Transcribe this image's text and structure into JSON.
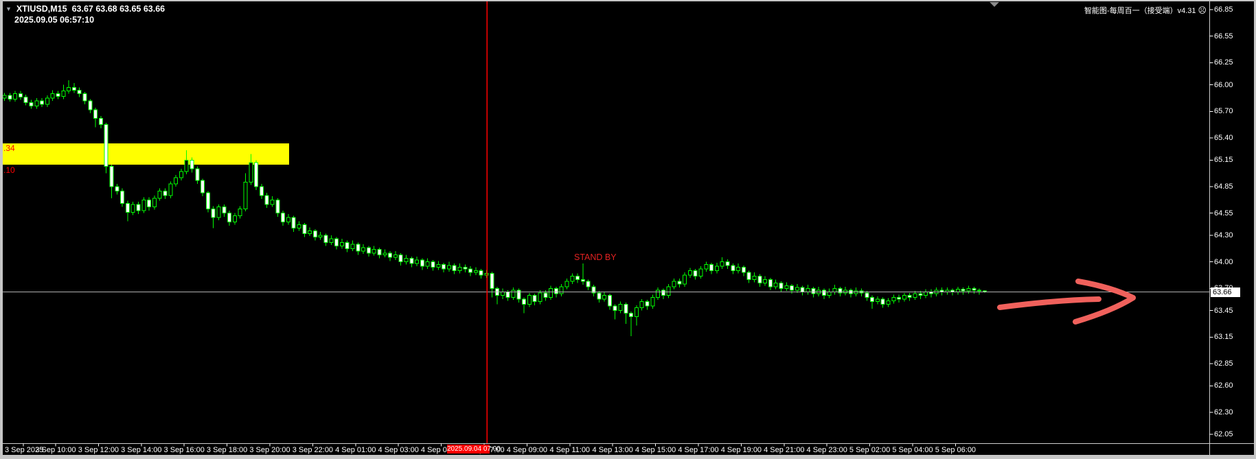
{
  "header": {
    "dropdown_icon": "▼",
    "symbol": "XTIUSD,M15",
    "ohlc": "63.67 63.68 63.65 63.66",
    "timestamp": "2025.09.05 06:57:10",
    "indicator_label": "智能图-每周百一（接受端）v4.31",
    "indicator_icon": "☹"
  },
  "price_axis": {
    "labels": [
      "66.85",
      "66.55",
      "66.25",
      "66.00",
      "65.70",
      "65.40",
      "65.15",
      "64.85",
      "64.55",
      "64.30",
      "64.00",
      "63.70",
      "63.45",
      "63.15",
      "62.85",
      "62.60",
      "62.30",
      "62.05"
    ],
    "current_tag": "63.66"
  },
  "time_axis": {
    "labels": [
      "3 Sep 2025",
      "3 Sep 10:00",
      "3 Sep 12:00",
      "3 Sep 14:00",
      "3 Sep 16:00",
      "3 Sep 18:00",
      "3 Sep 20:00",
      "3 Sep 22:00",
      "4 Sep 01:00",
      "4 Sep 03:00",
      "4 Sep 05:00",
      "4 Sep 07:00",
      "4 Sep 09:00",
      "4 Sep 11:00",
      "4 Sep 13:00",
      "4 Sep 15:00",
      "4 Sep 17:00",
      "4 Sep 19:00",
      "4 Sep 21:00",
      "4 Sep 23:00",
      "5 Sep 02:00",
      "5 Sep 04:00",
      "5 Sep 06:00"
    ]
  },
  "overlays": {
    "zone": {
      "label_top": ".34",
      "label_bottom": ".10",
      "price_top": 65.34,
      "price_bottom": 65.1,
      "color": "#ffff00",
      "label_color": "#ff0000"
    },
    "vline": {
      "tag_text": "2025.09.04 07:00",
      "color": "#ff0000"
    },
    "standby": {
      "text": "STAND BY",
      "color": "#e32222"
    },
    "arrow": {
      "color": "#f0615c"
    },
    "bid_line": {
      "price": 63.66,
      "color": "#b0b0b0"
    }
  },
  "colors": {
    "background": "#000000",
    "candle_outline": "#00ff00",
    "bear_body_fill": "#ffffff",
    "bull_body_fill": "#000000",
    "axis_text": "#ffffff",
    "axis_line": "#cfcfcf"
  },
  "chart_data": {
    "type": "candlestick",
    "symbol": "XTIUSD",
    "timeframe": "M15",
    "ylim": [
      62.05,
      66.85
    ],
    "grid": false,
    "candles_format": [
      "open",
      "high",
      "low",
      "close"
    ],
    "candles": [
      [
        65.85,
        65.91,
        65.82,
        65.88
      ],
      [
        65.88,
        65.91,
        65.81,
        65.84
      ],
      [
        65.84,
        65.93,
        65.81,
        65.9
      ],
      [
        65.9,
        65.93,
        65.83,
        65.86
      ],
      [
        65.86,
        65.89,
        65.77,
        65.8
      ],
      [
        65.8,
        65.83,
        65.73,
        65.76
      ],
      [
        65.76,
        65.85,
        65.73,
        65.82
      ],
      [
        65.82,
        65.85,
        65.75,
        65.78
      ],
      [
        65.78,
        65.88,
        65.75,
        65.85
      ],
      [
        65.85,
        65.94,
        65.82,
        65.9
      ],
      [
        65.9,
        65.93,
        65.84,
        65.87
      ],
      [
        65.87,
        66.0,
        65.84,
        65.93
      ],
      [
        65.93,
        66.05,
        65.9,
        65.97
      ],
      [
        65.97,
        66.02,
        65.91,
        65.94
      ],
      [
        65.94,
        65.97,
        65.86,
        65.9
      ],
      [
        65.9,
        65.92,
        65.78,
        65.82
      ],
      [
        65.82,
        65.84,
        65.68,
        65.72
      ],
      [
        65.72,
        65.74,
        65.52,
        65.62
      ],
      [
        65.62,
        65.65,
        65.51,
        65.55
      ],
      [
        65.55,
        65.57,
        65.0,
        65.08
      ],
      [
        65.08,
        65.1,
        64.72,
        64.85
      ],
      [
        64.85,
        64.88,
        64.76,
        64.8
      ],
      [
        64.8,
        64.83,
        64.62,
        64.66
      ],
      [
        64.66,
        64.69,
        64.46,
        64.56
      ],
      [
        64.56,
        64.68,
        64.53,
        64.65
      ],
      [
        64.65,
        64.68,
        64.54,
        64.58
      ],
      [
        64.58,
        64.73,
        64.55,
        64.7
      ],
      [
        64.7,
        64.73,
        64.58,
        64.62
      ],
      [
        64.62,
        64.75,
        64.59,
        64.72
      ],
      [
        64.72,
        64.83,
        64.69,
        64.8
      ],
      [
        64.8,
        64.83,
        64.71,
        64.75
      ],
      [
        64.75,
        64.91,
        64.72,
        64.88
      ],
      [
        64.88,
        64.98,
        64.85,
        64.95
      ],
      [
        64.95,
        65.05,
        64.92,
        65.02
      ],
      [
        65.02,
        65.26,
        64.99,
        65.15
      ],
      [
        65.15,
        65.18,
        65.01,
        65.05
      ],
      [
        65.05,
        65.08,
        64.88,
        64.92
      ],
      [
        64.92,
        64.94,
        64.74,
        64.78
      ],
      [
        64.78,
        64.8,
        64.56,
        64.6
      ],
      [
        64.6,
        64.63,
        64.38,
        64.5
      ],
      [
        64.5,
        64.65,
        64.47,
        64.62
      ],
      [
        64.62,
        64.65,
        64.51,
        64.55
      ],
      [
        64.55,
        64.58,
        64.41,
        64.45
      ],
      [
        64.45,
        64.55,
        64.42,
        64.52
      ],
      [
        64.52,
        64.63,
        64.49,
        64.6
      ],
      [
        64.6,
        65.0,
        64.57,
        64.9
      ],
      [
        64.9,
        65.22,
        64.87,
        65.12
      ],
      [
        65.12,
        65.15,
        64.81,
        64.85
      ],
      [
        64.85,
        64.88,
        64.71,
        64.75
      ],
      [
        64.75,
        64.78,
        64.61,
        64.65
      ],
      [
        64.65,
        64.74,
        64.62,
        64.7
      ],
      [
        64.7,
        64.72,
        64.51,
        64.55
      ],
      [
        64.55,
        64.58,
        64.41,
        64.45
      ],
      [
        64.45,
        64.54,
        64.42,
        64.5
      ],
      [
        64.5,
        64.52,
        64.34,
        64.38
      ],
      [
        64.38,
        64.46,
        64.35,
        64.42
      ],
      [
        64.42,
        64.44,
        64.28,
        64.32
      ],
      [
        64.32,
        64.39,
        64.29,
        64.35
      ],
      [
        64.35,
        64.37,
        64.24,
        64.28
      ],
      [
        64.28,
        64.34,
        64.25,
        64.3
      ],
      [
        64.3,
        64.32,
        64.18,
        64.22
      ],
      [
        64.22,
        64.3,
        64.19,
        64.26
      ],
      [
        64.26,
        64.28,
        64.14,
        64.18
      ],
      [
        64.18,
        64.26,
        64.15,
        64.22
      ],
      [
        64.22,
        64.24,
        64.11,
        64.15
      ],
      [
        64.15,
        64.24,
        64.12,
        64.2
      ],
      [
        64.2,
        64.22,
        64.08,
        64.12
      ],
      [
        64.12,
        64.2,
        64.09,
        64.16
      ],
      [
        64.16,
        64.18,
        64.06,
        64.1
      ],
      [
        64.1,
        64.18,
        64.07,
        64.14
      ],
      [
        64.14,
        64.16,
        64.04,
        64.08
      ],
      [
        64.08,
        64.14,
        64.05,
        64.1
      ],
      [
        64.1,
        64.12,
        64.01,
        64.05
      ],
      [
        64.05,
        64.12,
        64.02,
        64.08
      ],
      [
        64.08,
        64.1,
        63.96,
        64.0
      ],
      [
        64.0,
        64.08,
        63.97,
        64.04
      ],
      [
        64.04,
        64.06,
        63.94,
        63.98
      ],
      [
        63.98,
        64.06,
        63.95,
        64.02
      ],
      [
        64.02,
        64.04,
        63.91,
        63.95
      ],
      [
        63.95,
        64.04,
        63.92,
        64.0
      ],
      [
        64.0,
        64.02,
        63.9,
        63.94
      ],
      [
        63.94,
        64.01,
        63.91,
        63.97
      ],
      [
        63.97,
        63.99,
        63.88,
        63.92
      ],
      [
        63.92,
        64.0,
        63.89,
        63.96
      ],
      [
        63.96,
        63.98,
        63.86,
        63.9
      ],
      [
        63.9,
        63.98,
        63.87,
        63.94
      ],
      [
        63.94,
        63.97,
        63.88,
        63.92
      ],
      [
        63.92,
        63.95,
        63.84,
        63.88
      ],
      [
        63.88,
        63.94,
        63.85,
        63.9
      ],
      [
        63.9,
        63.92,
        63.81,
        63.85
      ],
      [
        63.85,
        63.91,
        63.82,
        63.87
      ],
      [
        63.87,
        63.89,
        63.6,
        63.7
      ],
      [
        63.7,
        63.72,
        63.52,
        63.62
      ],
      [
        63.62,
        63.7,
        63.58,
        63.66
      ],
      [
        63.66,
        63.68,
        63.56,
        63.6
      ],
      [
        63.6,
        63.71,
        63.57,
        63.68
      ],
      [
        63.68,
        63.7,
        63.54,
        63.58
      ],
      [
        63.58,
        63.6,
        63.42,
        63.52
      ],
      [
        63.52,
        63.65,
        63.49,
        63.62
      ],
      [
        63.62,
        63.64,
        63.51,
        63.55
      ],
      [
        63.55,
        63.68,
        63.52,
        63.65
      ],
      [
        63.65,
        63.68,
        63.56,
        63.6
      ],
      [
        63.6,
        63.73,
        63.57,
        63.7
      ],
      [
        63.7,
        63.72,
        63.6,
        63.64
      ],
      [
        63.64,
        63.75,
        63.61,
        63.72
      ],
      [
        63.72,
        63.81,
        63.69,
        63.78
      ],
      [
        63.78,
        63.87,
        63.75,
        63.84
      ],
      [
        63.84,
        63.87,
        63.76,
        63.8
      ],
      [
        63.8,
        63.98,
        63.74,
        63.78
      ],
      [
        63.78,
        63.8,
        63.68,
        63.72
      ],
      [
        63.72,
        63.74,
        63.61,
        63.65
      ],
      [
        63.65,
        63.67,
        63.54,
        63.58
      ],
      [
        63.58,
        63.66,
        63.55,
        63.62
      ],
      [
        63.62,
        63.64,
        63.46,
        63.5
      ],
      [
        63.5,
        63.52,
        63.35,
        63.45
      ],
      [
        63.45,
        63.55,
        63.42,
        63.52
      ],
      [
        63.52,
        63.54,
        63.3,
        63.42
      ],
      [
        63.42,
        63.44,
        63.16,
        63.38
      ],
      [
        63.38,
        63.51,
        63.28,
        63.48
      ],
      [
        63.48,
        63.58,
        63.45,
        63.55
      ],
      [
        63.55,
        63.57,
        63.46,
        63.5
      ],
      [
        63.5,
        63.63,
        63.47,
        63.6
      ],
      [
        63.6,
        63.71,
        63.57,
        63.68
      ],
      [
        63.68,
        63.7,
        63.58,
        63.62
      ],
      [
        63.62,
        63.75,
        63.59,
        63.72
      ],
      [
        63.72,
        63.81,
        63.69,
        63.78
      ],
      [
        63.78,
        63.81,
        63.71,
        63.75
      ],
      [
        63.75,
        63.88,
        63.72,
        63.85
      ],
      [
        63.85,
        63.93,
        63.82,
        63.9
      ],
      [
        63.9,
        63.92,
        63.8,
        63.84
      ],
      [
        63.84,
        63.95,
        63.81,
        63.92
      ],
      [
        63.92,
        64.0,
        63.89,
        63.97
      ],
      [
        63.97,
        63.99,
        63.86,
        63.9
      ],
      [
        63.9,
        63.99,
        63.87,
        63.95
      ],
      [
        63.95,
        64.05,
        63.92,
        64.0
      ],
      [
        64.0,
        64.03,
        63.92,
        63.96
      ],
      [
        63.96,
        63.98,
        63.86,
        63.9
      ],
      [
        63.9,
        63.98,
        63.87,
        63.94
      ],
      [
        63.94,
        63.96,
        63.84,
        63.88
      ],
      [
        63.88,
        63.9,
        63.76,
        63.8
      ],
      [
        63.8,
        63.88,
        63.77,
        63.84
      ],
      [
        63.84,
        63.86,
        63.72,
        63.76
      ],
      [
        63.76,
        63.84,
        63.73,
        63.8
      ],
      [
        63.8,
        63.82,
        63.68,
        63.72
      ],
      [
        63.72,
        63.8,
        63.69,
        63.76
      ],
      [
        63.76,
        63.78,
        63.66,
        63.7
      ],
      [
        63.7,
        63.77,
        63.67,
        63.73
      ],
      [
        63.73,
        63.75,
        63.64,
        63.68
      ],
      [
        63.68,
        63.75,
        63.65,
        63.71
      ],
      [
        63.71,
        63.73,
        63.62,
        63.66
      ],
      [
        63.66,
        63.74,
        63.63,
        63.7
      ],
      [
        63.7,
        63.72,
        63.6,
        63.64
      ],
      [
        63.64,
        63.72,
        63.61,
        63.68
      ],
      [
        63.68,
        63.7,
        63.58,
        63.62
      ],
      [
        63.62,
        63.7,
        63.59,
        63.66
      ],
      [
        63.66,
        63.74,
        63.63,
        63.7
      ],
      [
        63.7,
        63.72,
        63.61,
        63.65
      ],
      [
        63.65,
        63.72,
        63.62,
        63.68
      ],
      [
        63.68,
        63.7,
        63.6,
        63.64
      ],
      [
        63.64,
        63.71,
        63.61,
        63.67
      ],
      [
        63.67,
        63.7,
        63.61,
        63.65
      ],
      [
        63.65,
        63.67,
        63.56,
        63.6
      ],
      [
        63.6,
        63.62,
        63.47,
        63.55
      ],
      [
        63.55,
        63.61,
        63.52,
        63.58
      ],
      [
        63.58,
        63.6,
        63.48,
        63.52
      ],
      [
        63.52,
        63.59,
        63.49,
        63.56
      ],
      [
        63.56,
        63.63,
        63.53,
        63.6
      ],
      [
        63.6,
        63.63,
        63.54,
        63.58
      ],
      [
        63.58,
        63.65,
        63.55,
        63.62
      ],
      [
        63.62,
        63.65,
        63.56,
        63.6
      ],
      [
        63.6,
        63.67,
        63.57,
        63.64
      ],
      [
        63.64,
        63.67,
        63.58,
        63.62
      ],
      [
        63.62,
        63.69,
        63.59,
        63.66
      ],
      [
        63.66,
        63.69,
        63.6,
        63.64
      ],
      [
        63.64,
        63.71,
        63.61,
        63.68
      ],
      [
        63.68,
        63.71,
        63.62,
        63.66
      ],
      [
        63.66,
        63.71,
        63.63,
        63.68
      ],
      [
        63.68,
        63.7,
        63.62,
        63.66
      ],
      [
        63.66,
        63.72,
        63.63,
        63.69
      ],
      [
        63.69,
        63.71,
        63.63,
        63.67
      ],
      [
        63.67,
        63.73,
        63.64,
        63.7
      ],
      [
        63.7,
        63.72,
        63.64,
        63.68
      ],
      [
        63.68,
        63.7,
        63.63,
        63.67
      ],
      [
        63.67,
        63.68,
        63.65,
        63.66
      ]
    ]
  }
}
